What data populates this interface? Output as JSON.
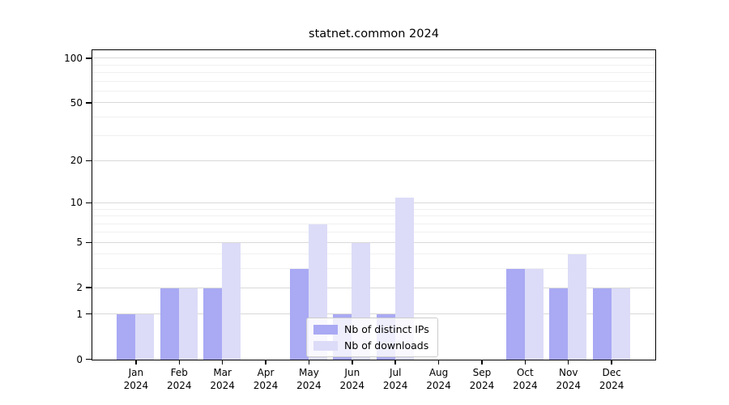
{
  "chart_data": {
    "type": "bar",
    "title": "statnet.common 2024",
    "categories": [
      "Jan 2024",
      "Feb 2024",
      "Mar 2024",
      "Apr 2024",
      "May 2024",
      "Jun 2024",
      "Jul 2024",
      "Aug 2024",
      "Sep 2024",
      "Oct 2024",
      "Nov 2024",
      "Dec 2024"
    ],
    "series": [
      {
        "name": "Nb of distinct IPs",
        "color": "#a9a9f4",
        "values": [
          1,
          2,
          2,
          0,
          3,
          1,
          1,
          0,
          0,
          3,
          2,
          2
        ]
      },
      {
        "name": "Nb of downloads",
        "color": "#dcdcf8",
        "values": [
          1,
          2,
          5,
          0,
          7,
          5,
          11,
          0,
          0,
          3,
          4,
          2
        ]
      }
    ],
    "xlabel": "",
    "ylabel": "",
    "yscale": "log1p",
    "ylim": [
      0,
      113
    ],
    "yticks": [
      0,
      1,
      2,
      5,
      10,
      20,
      50,
      100
    ],
    "minor_gridlines": [
      3,
      4,
      6,
      7,
      8,
      9,
      30,
      40,
      60,
      70,
      80,
      90
    ],
    "grid": "horizontal",
    "legend_position": "inside-bottom-center"
  }
}
